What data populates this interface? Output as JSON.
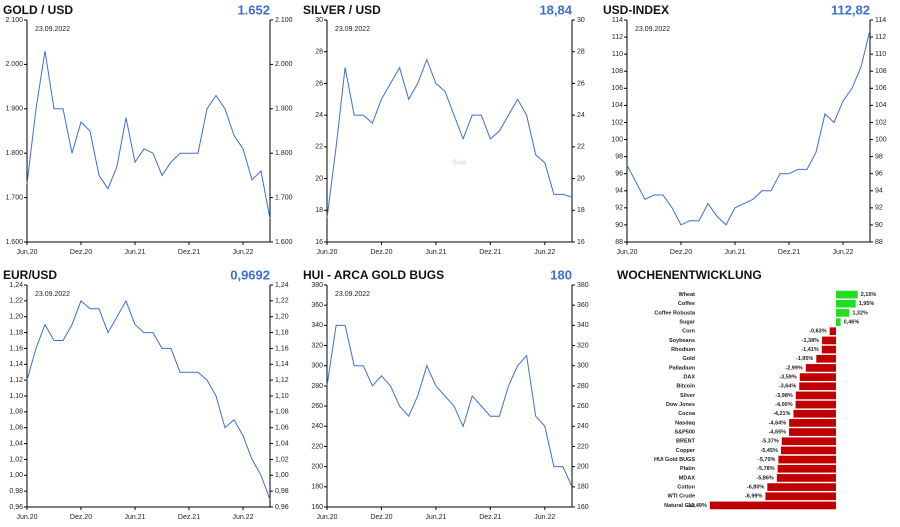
{
  "chart_data": [
    {
      "type": "line",
      "title": "GOLD / USD",
      "current": {
        "value": 1652,
        "label": "1.652"
      },
      "date_label": "23.09.2022",
      "color": "#3b6fd8",
      "x": [
        "2020-06",
        "2020-07",
        "2020-08",
        "2020-09",
        "2020-10",
        "2020-11",
        "2020-12",
        "2021-01",
        "2021-02",
        "2021-03",
        "2021-04",
        "2021-05",
        "2021-06",
        "2021-07",
        "2021-08",
        "2021-09",
        "2021-10",
        "2021-11",
        "2021-12",
        "2022-01",
        "2022-02",
        "2022-03",
        "2022-04",
        "2022-05",
        "2022-06",
        "2022-07",
        "2022-08",
        "2022-09"
      ],
      "values": [
        1730,
        1900,
        2030,
        1900,
        1900,
        1800,
        1870,
        1850,
        1750,
        1720,
        1770,
        1880,
        1780,
        1810,
        1800,
        1750,
        1780,
        1800,
        1800,
        1800,
        1900,
        1930,
        1900,
        1840,
        1810,
        1740,
        1760,
        1652
      ],
      "xlim": [
        "2020-06",
        "2022-09"
      ],
      "xticks": [
        {
          "value": "2020-06",
          "label": "Jun.20"
        },
        {
          "value": "2020-12",
          "label": "Dez.20"
        },
        {
          "value": "2021-06",
          "label": "Jun.21"
        },
        {
          "value": "2021-12",
          "label": "Dez.21"
        },
        {
          "value": "2022-06",
          "label": "Jun.22"
        }
      ],
      "ylim": [
        1600,
        2100
      ],
      "yticks": [
        {
          "value": 1600,
          "label": "1.600"
        },
        {
          "value": 1700,
          "label": "1.700"
        },
        {
          "value": 1800,
          "label": "1.800"
        },
        {
          "value": 1900,
          "label": "1.900"
        },
        {
          "value": 2000,
          "label": "2.000"
        },
        {
          "value": 2100,
          "label": "2.100"
        }
      ]
    },
    {
      "type": "line",
      "title": "SILVER / USD",
      "current": {
        "value": 18.84,
        "label": "18,84"
      },
      "date_label": "23.09.2022",
      "color": "#3b6fd8",
      "watermark": "Solit",
      "x": [
        "2020-06",
        "2020-07",
        "2020-08",
        "2020-09",
        "2020-10",
        "2020-11",
        "2020-12",
        "2021-01",
        "2021-02",
        "2021-03",
        "2021-04",
        "2021-05",
        "2021-06",
        "2021-07",
        "2021-08",
        "2021-09",
        "2021-10",
        "2021-11",
        "2021-12",
        "2022-01",
        "2022-02",
        "2022-03",
        "2022-04",
        "2022-05",
        "2022-06",
        "2022-07",
        "2022-08",
        "2022-09"
      ],
      "values": [
        17.5,
        22,
        27,
        24,
        24,
        23.5,
        25,
        26,
        27,
        25,
        26,
        27.5,
        26,
        25.5,
        24,
        22.5,
        24,
        24,
        22.5,
        23,
        24,
        25,
        24,
        21.5,
        21,
        19,
        19,
        18.84
      ],
      "xlim": [
        "2020-06",
        "2022-09"
      ],
      "xticks": [
        {
          "value": "2020-06",
          "label": "Jun.20"
        },
        {
          "value": "2020-12",
          "label": "Dez.20"
        },
        {
          "value": "2021-06",
          "label": "Jun.21"
        },
        {
          "value": "2021-12",
          "label": "Dez.21"
        },
        {
          "value": "2022-06",
          "label": "Jun.22"
        }
      ],
      "ylim": [
        16,
        30
      ],
      "yticks": [
        16,
        18,
        20,
        22,
        24,
        26,
        28,
        30
      ]
    },
    {
      "type": "line",
      "title": "USD-INDEX",
      "current": {
        "value": 112.82,
        "label": "112,82"
      },
      "date_label": "23.09.2022",
      "color": "#3b6fd8",
      "x": [
        "2020-06",
        "2020-07",
        "2020-08",
        "2020-09",
        "2020-10",
        "2020-11",
        "2020-12",
        "2021-01",
        "2021-02",
        "2021-03",
        "2021-04",
        "2021-05",
        "2021-06",
        "2021-07",
        "2021-08",
        "2021-09",
        "2021-10",
        "2021-11",
        "2021-12",
        "2022-01",
        "2022-02",
        "2022-03",
        "2022-04",
        "2022-05",
        "2022-06",
        "2022-07",
        "2022-08",
        "2022-09"
      ],
      "values": [
        97,
        95,
        93,
        93.5,
        93.5,
        92,
        90,
        90.5,
        90.5,
        92.5,
        91,
        90,
        92,
        92.5,
        93,
        94,
        94,
        96,
        96,
        96.5,
        96.5,
        98.5,
        103,
        102,
        104.5,
        106,
        108.5,
        112.82
      ],
      "xlim": [
        "2020-06",
        "2022-09"
      ],
      "xticks": [
        {
          "value": "2020-06",
          "label": "Jun.20"
        },
        {
          "value": "2020-12",
          "label": "Dez.20"
        },
        {
          "value": "2021-06",
          "label": "Jun.21"
        },
        {
          "value": "2021-12",
          "label": "Dez.21"
        },
        {
          "value": "2022-06",
          "label": "Jun.22"
        }
      ],
      "ylim": [
        88,
        114
      ],
      "yticks": [
        88,
        90,
        92,
        94,
        96,
        98,
        100,
        102,
        104,
        106,
        108,
        110,
        112,
        114
      ]
    },
    {
      "type": "line",
      "title": "EUR/USD",
      "current": {
        "value": 0.9692,
        "label": "0,9692"
      },
      "date_label": "23.09.2022",
      "color": "#3b6fd8",
      "x": [
        "2020-06",
        "2020-07",
        "2020-08",
        "2020-09",
        "2020-10",
        "2020-11",
        "2020-12",
        "2021-01",
        "2021-02",
        "2021-03",
        "2021-04",
        "2021-05",
        "2021-06",
        "2021-07",
        "2021-08",
        "2021-09",
        "2021-10",
        "2021-11",
        "2021-12",
        "2022-01",
        "2022-02",
        "2022-03",
        "2022-04",
        "2022-05",
        "2022-06",
        "2022-07",
        "2022-08",
        "2022-09"
      ],
      "values": [
        1.12,
        1.16,
        1.19,
        1.17,
        1.17,
        1.19,
        1.22,
        1.21,
        1.21,
        1.18,
        1.2,
        1.22,
        1.19,
        1.18,
        1.18,
        1.16,
        1.16,
        1.13,
        1.13,
        1.13,
        1.12,
        1.1,
        1.06,
        1.07,
        1.05,
        1.02,
        1.0,
        0.9692
      ],
      "xlim": [
        "2020-06",
        "2022-09"
      ],
      "xticks": [
        {
          "value": "2020-06",
          "label": "Jun.20"
        },
        {
          "value": "2020-12",
          "label": "Dez.20"
        },
        {
          "value": "2021-06",
          "label": "Jun.21"
        },
        {
          "value": "2021-12",
          "label": "Dez.21"
        },
        {
          "value": "2022-06",
          "label": "Jun.22"
        }
      ],
      "ylim": [
        0.96,
        1.24
      ],
      "yticks": [
        {
          "value": 0.96,
          "label": "0,96"
        },
        {
          "value": 0.98,
          "label": "0,98"
        },
        {
          "value": 1,
          "label": "1,00"
        },
        {
          "value": 1.02,
          "label": "1,02"
        },
        {
          "value": 1.04,
          "label": "1,04"
        },
        {
          "value": 1.06,
          "label": "1,06"
        },
        {
          "value": 1.08,
          "label": "1,08"
        },
        {
          "value": 1.1,
          "label": "1,10"
        },
        {
          "value": 1.12,
          "label": "1,12"
        },
        {
          "value": 1.14,
          "label": "1,14"
        },
        {
          "value": 1.16,
          "label": "1,16"
        },
        {
          "value": 1.18,
          "label": "1,18"
        },
        {
          "value": 1.2,
          "label": "1,20"
        },
        {
          "value": 1.22,
          "label": "1,22"
        },
        {
          "value": 1.24,
          "label": "1,24"
        }
      ]
    },
    {
      "type": "line",
      "title": "HUI - ARCA GOLD BUGS",
      "current": {
        "value": 180,
        "label": "180"
      },
      "date_label": "23.09.2022",
      "color": "#3b6fd8",
      "x": [
        "2020-06",
        "2020-07",
        "2020-08",
        "2020-09",
        "2020-10",
        "2020-11",
        "2020-12",
        "2021-01",
        "2021-02",
        "2021-03",
        "2021-04",
        "2021-05",
        "2021-06",
        "2021-07",
        "2021-08",
        "2021-09",
        "2021-10",
        "2021-11",
        "2021-12",
        "2022-01",
        "2022-02",
        "2022-03",
        "2022-04",
        "2022-05",
        "2022-06",
        "2022-07",
        "2022-08",
        "2022-09"
      ],
      "values": [
        280,
        340,
        340,
        300,
        300,
        280,
        290,
        280,
        260,
        250,
        270,
        300,
        280,
        270,
        260,
        240,
        270,
        260,
        250,
        250,
        280,
        300,
        310,
        250,
        240,
        200,
        200,
        180
      ],
      "xlim": [
        "2020-06",
        "2022-09"
      ],
      "xticks": [
        {
          "value": "2020-06",
          "label": "Jun.20"
        },
        {
          "value": "2020-12",
          "label": "Dez.20"
        },
        {
          "value": "2021-06",
          "label": "Jun.21"
        },
        {
          "value": "2021-12",
          "label": "Dez.21"
        },
        {
          "value": "2022-06",
          "label": "Jun.22"
        }
      ],
      "ylim": [
        160,
        380
      ],
      "yticks": [
        160,
        180,
        200,
        220,
        240,
        260,
        280,
        300,
        320,
        340,
        360,
        380
      ]
    },
    {
      "type": "bar",
      "title": "WOCHENENTWICKLUNG",
      "positive_color": "#22dd22",
      "negative_color": "#c00000",
      "categories": [
        "Wheat",
        "Coffee",
        "Coffee Robusta",
        "Sugar",
        "Corn",
        "Soybeans",
        "Rhodium",
        "Gold",
        "Palladium",
        "DAX",
        "Bitcoin",
        "Silver",
        "Dow Jones",
        "Cocoa",
        "Nasdaq",
        "S&P500",
        "BRENT",
        "Copper",
        "HUI Gold BUGS",
        "Platin",
        "MDAX",
        "Cotton",
        "WTI Crude",
        "Natural Gas"
      ],
      "values": [
        2.15,
        1.95,
        1.32,
        0.46,
        -0.63,
        -1.38,
        -1.41,
        -1.95,
        -2.99,
        -3.59,
        -3.64,
        -3.98,
        -4.0,
        -4.21,
        -4.64,
        -4.65,
        -5.37,
        -5.45,
        -5.7,
        -5.78,
        -5.86,
        -6.8,
        -6.99,
        -12.49
      ],
      "value_labels": [
        "2,15%",
        "1,95%",
        "1,32%",
        "0,46%",
        "-0,63%",
        "-1,38%",
        "-1,41%",
        "-1,95%",
        "-2,99%",
        "-3,59%",
        "-3,64%",
        "-3,98%",
        "-4,00%",
        "-4,21%",
        "-4,64%",
        "-4,65%",
        "-5,37%",
        "-5,45%",
        "-5,70%",
        "-5,78%",
        "-5,86%",
        "-6,80%",
        "-6,99%",
        "-12,49%"
      ]
    }
  ]
}
